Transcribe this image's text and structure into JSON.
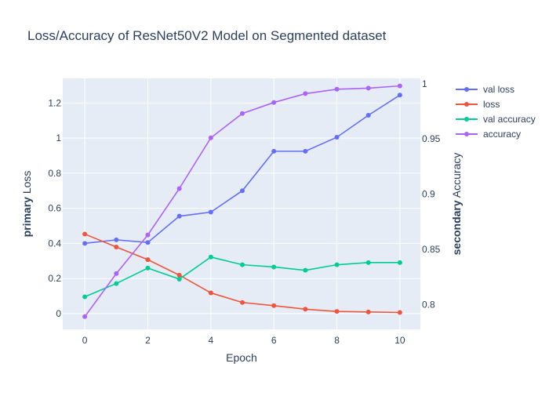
{
  "chart_data": {
    "type": "line",
    "title": "Loss/Accuracy of ResNet50V2 Model on Segmented dataset",
    "xlabel": "Epoch",
    "ylabel_left": {
      "bold": "primary",
      "rest": " Loss"
    },
    "ylabel_right": {
      "bold": "secondary",
      "rest": " Accuracy"
    },
    "x": [
      0,
      1,
      2,
      3,
      4,
      5,
      6,
      7,
      8,
      9,
      10
    ],
    "x_ticks": [
      "0",
      "2",
      "4",
      "6",
      "8",
      "10"
    ],
    "y_left_ticks": [
      "0",
      "0.2",
      "0.4",
      "0.6",
      "0.8",
      "1",
      "1.2"
    ],
    "y_right_ticks": [
      "0.8",
      "0.85",
      "0.9",
      "0.95",
      "1"
    ],
    "xlim": [
      -0.7,
      10.65
    ],
    "ylim_left": [
      -0.09,
      1.34
    ],
    "ylim_right": [
      0.7775,
      1.0048
    ],
    "grid": true,
    "legend_position": "top-right",
    "series": [
      {
        "name": "val loss",
        "axis": "left",
        "color": "#636efa",
        "values": [
          0.4,
          0.42,
          0.405,
          0.555,
          0.578,
          0.7,
          0.925,
          0.925,
          1.005,
          1.13,
          1.245
        ]
      },
      {
        "name": "loss",
        "axis": "left",
        "color": "#ef553b",
        "values": [
          0.453,
          0.379,
          0.307,
          0.219,
          0.118,
          0.063,
          0.045,
          0.025,
          0.012,
          0.009,
          0.006
        ]
      },
      {
        "name": "val accuracy",
        "axis": "right",
        "color": "#00cc96",
        "values": [
          0.807,
          0.819,
          0.833,
          0.823,
          0.843,
          0.836,
          0.834,
          0.831,
          0.836,
          0.838,
          0.838
        ]
      },
      {
        "name": "accuracy",
        "axis": "right",
        "color": "#ab63fa",
        "values": [
          0.789,
          0.828,
          0.863,
          0.905,
          0.951,
          0.973,
          0.983,
          0.991,
          0.995,
          0.996,
          0.998
        ]
      }
    ]
  }
}
